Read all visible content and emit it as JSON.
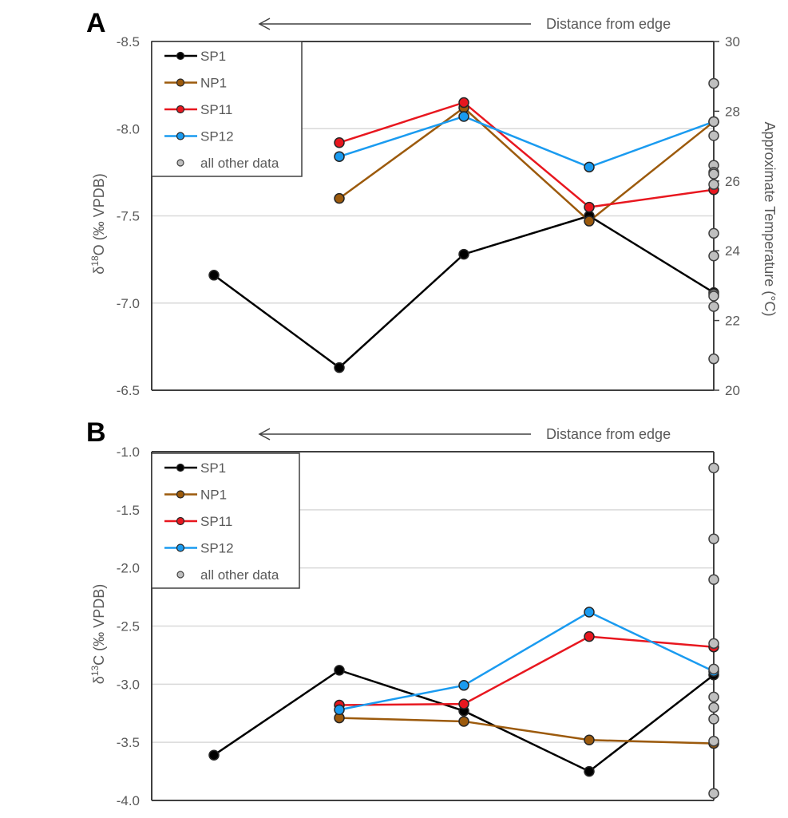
{
  "chart_data": [
    {
      "type": "line",
      "panel_label": "A",
      "annotation": "Distance from edge",
      "annotation_arrow": "left",
      "ylabel": "δ18O (‰ VPDB)",
      "ylabel_parts": {
        "prefix": "δ",
        "sup": "18",
        "suffix": "O (‰ VPDB)"
      },
      "y_inverted": true,
      "ylim": [
        -8.5,
        -6.5
      ],
      "yticks": [
        -8.5,
        -8.0,
        -7.5,
        -7.0,
        -6.5
      ],
      "ytick_labels": [
        "-8.5",
        "-8.0",
        "-7.5",
        "-7.0",
        "-6.5"
      ],
      "y2label": "Approximate Temperature (°C)",
      "y2lim": [
        30,
        20
      ],
      "y2ticks": [
        30,
        28,
        26,
        24,
        22,
        20
      ],
      "y2tick_labels": [
        "30",
        "28",
        "26",
        "24",
        "22",
        "20"
      ],
      "x_positions": [
        1,
        2,
        3,
        4,
        5
      ],
      "grid": "horizontal",
      "legend": "top-left",
      "series": [
        {
          "name": "SP1",
          "color": "#000000",
          "x": [
            1,
            2,
            3,
            4,
            5
          ],
          "values": [
            -7.16,
            -6.63,
            -7.28,
            -7.5,
            -7.06
          ]
        },
        {
          "name": "NP1",
          "color": "#9C5A0C",
          "x": [
            2,
            3,
            4,
            5
          ],
          "values": [
            -7.6,
            -8.12,
            -7.47,
            -8.04
          ]
        },
        {
          "name": "SP11",
          "color": "#E8171F",
          "x": [
            2,
            3,
            4,
            5
          ],
          "values": [
            -7.92,
            -8.15,
            -7.55,
            -7.65
          ]
        },
        {
          "name": "SP12",
          "color": "#1A9BF0",
          "x": [
            2,
            3,
            4,
            5
          ],
          "values": [
            -7.84,
            -8.07,
            -7.78,
            -8.04
          ]
        }
      ],
      "other_data": {
        "name": "all other data",
        "color": "#BFBFBF",
        "x": 5,
        "values": [
          -8.26,
          -8.04,
          -7.96,
          -7.79,
          -7.75,
          -7.74,
          -7.68,
          -7.4,
          -7.27,
          -7.05,
          -7.04,
          -6.98,
          -6.68
        ]
      }
    },
    {
      "type": "line",
      "panel_label": "B",
      "annotation": "Distance from edge",
      "annotation_arrow": "left",
      "ylabel": "δ13C (‰ VPDB)",
      "ylabel_parts": {
        "prefix": "δ",
        "sup": "13",
        "suffix": "C (‰ VPDB)"
      },
      "y_inverted": false,
      "ylim": [
        -4.0,
        -1.0
      ],
      "yticks": [
        -1.0,
        -1.5,
        -2.0,
        -2.5,
        -3.0,
        -3.5,
        -4.0
      ],
      "ytick_labels": [
        "-1.0",
        "-1.5",
        "-2.0",
        "-2.5",
        "-3.0",
        "-3.5",
        "-4.0"
      ],
      "x_positions": [
        1,
        2,
        3,
        4,
        5
      ],
      "grid": "horizontal",
      "legend": "top-left",
      "series": [
        {
          "name": "SP1",
          "color": "#000000",
          "x": [
            1,
            2,
            3,
            4,
            5
          ],
          "values": [
            -3.61,
            -2.88,
            -3.23,
            -3.75,
            -2.92
          ]
        },
        {
          "name": "NP1",
          "color": "#9C5A0C",
          "x": [
            2,
            3,
            4,
            5
          ],
          "values": [
            -3.29,
            -3.32,
            -3.48,
            -3.51
          ]
        },
        {
          "name": "SP11",
          "color": "#E8171F",
          "x": [
            2,
            3,
            4,
            5
          ],
          "values": [
            -3.18,
            -3.17,
            -2.59,
            -2.68
          ]
        },
        {
          "name": "SP12",
          "color": "#1A9BF0",
          "x": [
            2,
            3,
            4,
            5
          ],
          "values": [
            -3.22,
            -3.01,
            -2.38,
            -2.89
          ]
        }
      ],
      "other_data": {
        "name": "all other data",
        "color": "#BFBFBF",
        "x": 5,
        "values": [
          -1.14,
          -1.75,
          -2.1,
          -2.65,
          -2.87,
          -3.11,
          -3.2,
          -3.3,
          -3.49,
          -3.94
        ]
      }
    }
  ]
}
